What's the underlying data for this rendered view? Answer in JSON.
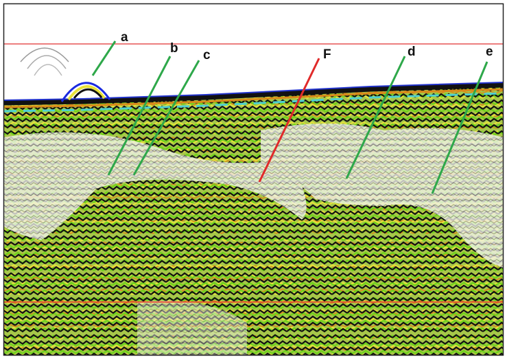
{
  "labels": [
    "a",
    "b",
    "c",
    "F",
    "d",
    "e"
  ]
}
